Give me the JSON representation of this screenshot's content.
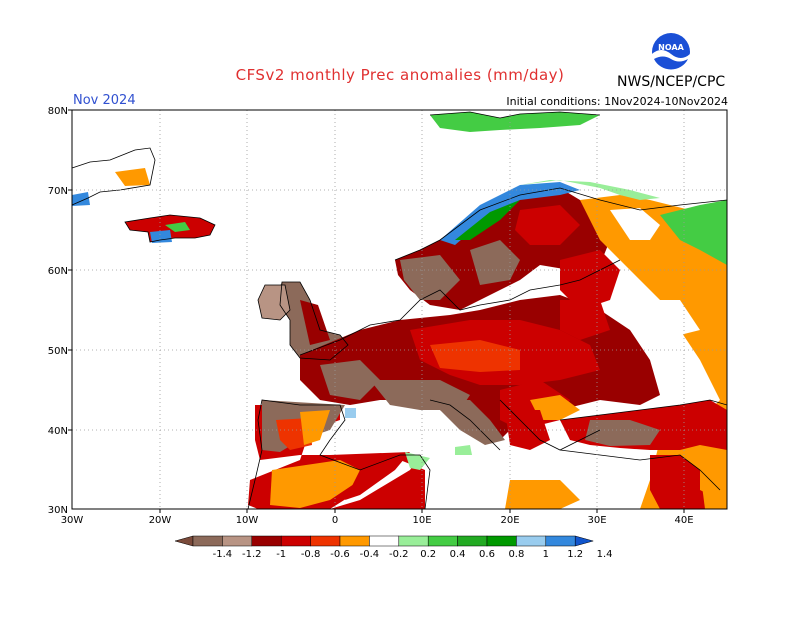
{
  "title": "CFSv2 monthly Prec anomalies (mm/day)",
  "month": "Nov 2024",
  "initial_conditions": "Initial conditions: 1Nov2024-10Nov2024",
  "agency": "NWS/NCEP/CPC",
  "logo_text": "NOAA",
  "lat_labels": [
    "80N",
    "70N",
    "60N",
    "50N",
    "40N",
    "30N"
  ],
  "lon_labels": [
    "30W",
    "20W",
    "10W",
    "0",
    "10E",
    "20E",
    "30E",
    "40E"
  ],
  "colorbar": {
    "labels": [
      "-1.4",
      "-1.2",
      "-1",
      "-0.8",
      "-0.6",
      "-0.4",
      "-0.2",
      "0.2",
      "0.4",
      "0.6",
      "0.8",
      "1",
      "1.2",
      "1.4"
    ],
    "colors": [
      "#7a4a3a",
      "#8c6a5a",
      "#b89484",
      "#990000",
      "#cc0000",
      "#ee3300",
      "#ff9900",
      "#ffffff",
      "#99ee99",
      "#44cc44",
      "#22aa22",
      "#009900",
      "#99ccee",
      "#3388dd",
      "#1155cc"
    ]
  }
}
